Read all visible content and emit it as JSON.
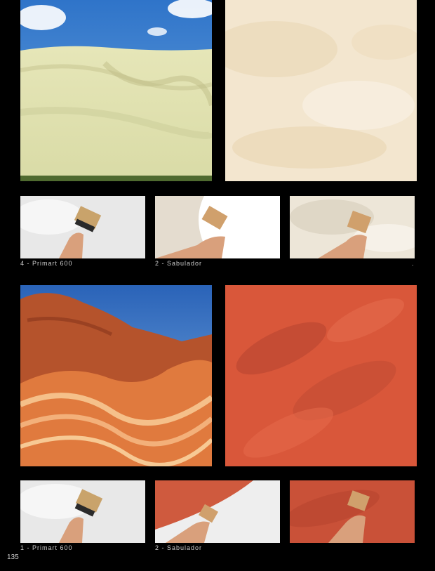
{
  "section1": {
    "captions": [
      "4 - Primart 600",
      "2 - Sabulador",
      "."
    ]
  },
  "section2": {
    "captions": [
      "1 - Primart 600",
      "2 - Sabulador"
    ]
  },
  "page_number": "135",
  "colors": {
    "background": "#000000",
    "caption_text": "#cfcfcf",
    "sand_texture": "#f3e6cf",
    "red_texture": "#d9573a"
  }
}
